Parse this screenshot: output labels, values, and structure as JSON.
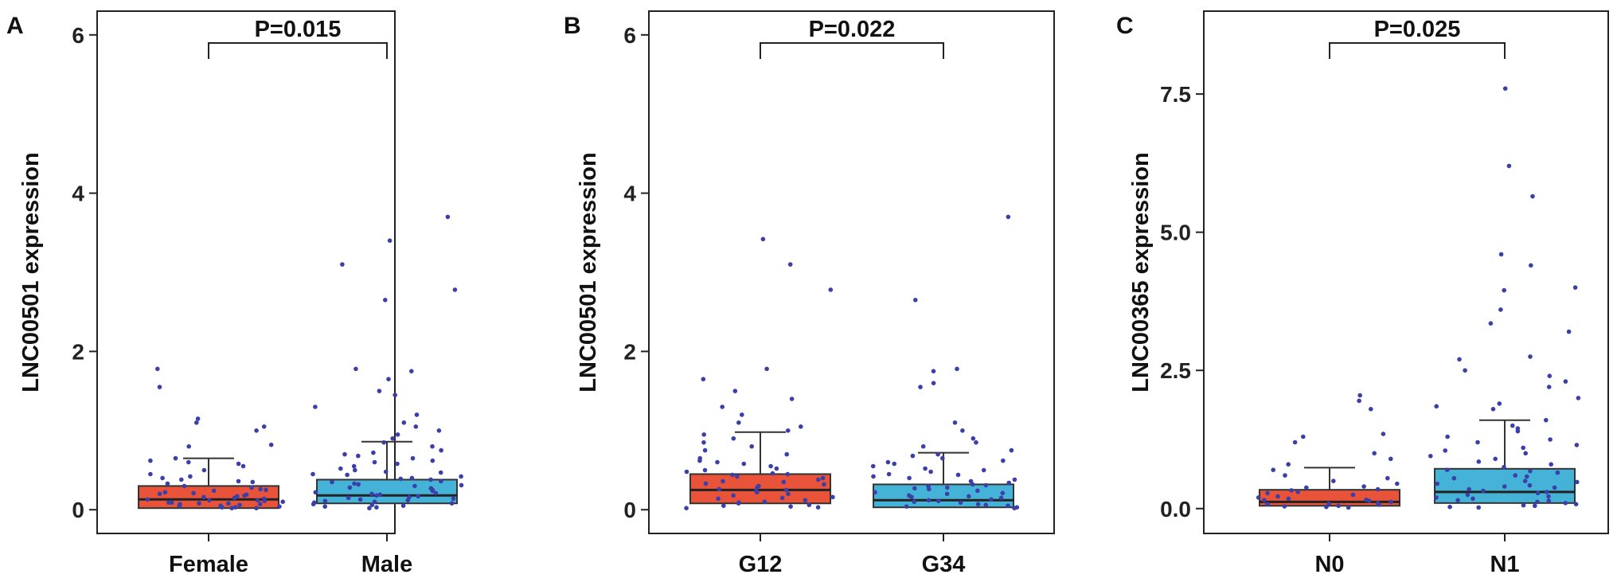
{
  "chart_data": [
    {
      "panel_label": "A",
      "type": "box",
      "ylabel": "LNC00501 expression",
      "ylim": [
        -0.3,
        6.3
      ],
      "yticks": [
        0,
        2,
        4,
        6
      ],
      "ytick_labels": [
        "0",
        "2",
        "4",
        "6"
      ],
      "categories": [
        "Female",
        "Male"
      ],
      "p_value": "P=0.015",
      "box_colors": [
        "#e8533a",
        "#45b3d8"
      ],
      "point_color": "#3b3fa8",
      "boxes": [
        {
          "name": "Female",
          "q1": 0.02,
          "median": 0.13,
          "q3": 0.3,
          "whisker_low": 0.0,
          "whisker_high": 0.65,
          "points": [
            0.02,
            0.05,
            0.08,
            0.1,
            0.03,
            0.15,
            0.2,
            0.25,
            0.06,
            0.12,
            0.18,
            0.3,
            0.35,
            0.4,
            0.05,
            0.09,
            0.22,
            0.28,
            0.14,
            0.07,
            0.45,
            0.5,
            0.55,
            0.6,
            0.65,
            0.8,
            0.82,
            1.05,
            1.1,
            1.15,
            1.0,
            1.55,
            1.78,
            0.38,
            0.42,
            0.12,
            0.04,
            0.16,
            0.19,
            0.33,
            0.08,
            0.11,
            0.02,
            0.07,
            0.24,
            0.26,
            0.58,
            0.62,
            0.03,
            0.13,
            0.17,
            0.21,
            0.36,
            0.09
          ]
        },
        {
          "name": "Male",
          "q1": 0.08,
          "median": 0.18,
          "q3": 0.38,
          "whisker_low": 0.0,
          "whisker_high": 0.86,
          "points": [
            0.02,
            0.06,
            0.1,
            0.14,
            0.18,
            0.22,
            0.28,
            0.35,
            0.4,
            0.45,
            0.5,
            0.55,
            0.6,
            0.7,
            0.8,
            0.85,
            0.9,
            1.0,
            1.1,
            1.2,
            1.3,
            1.45,
            1.5,
            1.65,
            1.75,
            1.78,
            2.65,
            2.78,
            3.1,
            3.4,
            3.7,
            0.05,
            0.09,
            0.12,
            0.16,
            0.2,
            0.25,
            0.3,
            0.33,
            0.38,
            0.42,
            0.48,
            0.52,
            0.58,
            0.65,
            0.75,
            0.95,
            1.05,
            0.04,
            0.08,
            0.11,
            0.15,
            0.19,
            0.24,
            0.32,
            0.36,
            0.44,
            0.62,
            0.72,
            0.03,
            0.07,
            0.13,
            0.17,
            0.21,
            0.27,
            0.31,
            0.39,
            0.47,
            0.68
          ]
        }
      ]
    },
    {
      "panel_label": "B",
      "type": "box",
      "ylabel": "LNC00501 expression",
      "ylim": [
        -0.3,
        6.3
      ],
      "yticks": [
        0,
        2,
        4,
        6
      ],
      "ytick_labels": [
        "0",
        "2",
        "4",
        "6"
      ],
      "categories": [
        "G12",
        "G34"
      ],
      "p_value": "P=0.022",
      "box_colors": [
        "#e8533a",
        "#45b3d8"
      ],
      "point_color": "#3b3fa8",
      "boxes": [
        {
          "name": "G12",
          "q1": 0.08,
          "median": 0.25,
          "q3": 0.45,
          "whisker_low": 0.0,
          "whisker_high": 0.98,
          "points": [
            0.02,
            0.05,
            0.1,
            0.15,
            0.2,
            0.25,
            0.3,
            0.35,
            0.4,
            0.45,
            0.5,
            0.55,
            0.6,
            0.7,
            0.8,
            0.9,
            1.0,
            1.1,
            1.2,
            1.3,
            1.5,
            1.65,
            1.78,
            2.78,
            3.1,
            3.42,
            0.06,
            0.12,
            0.18,
            0.22,
            0.28,
            0.33,
            0.38,
            0.42,
            0.48,
            0.52,
            0.58,
            0.65,
            0.75,
            0.85,
            0.95,
            1.05,
            1.4,
            0.04,
            0.08,
            0.14,
            0.24,
            0.32,
            0.44,
            0.62,
            0.03,
            0.09,
            0.16,
            0.26,
            0.36,
            0.46
          ]
        },
        {
          "name": "G34",
          "q1": 0.03,
          "median": 0.12,
          "q3": 0.32,
          "whisker_low": 0.0,
          "whisker_high": 0.72,
          "points": [
            0.02,
            0.04,
            0.07,
            0.1,
            0.13,
            0.16,
            0.2,
            0.24,
            0.28,
            0.32,
            0.36,
            0.4,
            0.45,
            0.5,
            0.55,
            0.6,
            0.65,
            0.7,
            0.8,
            0.9,
            1.0,
            1.1,
            1.55,
            1.6,
            1.75,
            1.78,
            2.65,
            3.7,
            0.05,
            0.09,
            0.12,
            0.15,
            0.18,
            0.22,
            0.26,
            0.3,
            0.34,
            0.38,
            0.42,
            0.48,
            0.52,
            0.58,
            0.62,
            0.68,
            0.75,
            0.85,
            0.03,
            0.06,
            0.11,
            0.17,
            0.21,
            0.27,
            0.31,
            0.44
          ]
        }
      ]
    },
    {
      "panel_label": "C",
      "type": "box",
      "ylabel": "LNC00365 expression",
      "ylim": [
        -0.45,
        9.0
      ],
      "yticks": [
        0.0,
        2.5,
        5.0,
        7.5
      ],
      "ytick_labels": [
        "0.0",
        "2.5",
        "5.0",
        "7.5"
      ],
      "categories": [
        "N0",
        "N1"
      ],
      "p_value": "P=0.025",
      "box_colors": [
        "#e8533a",
        "#45b3d8"
      ],
      "point_color": "#3b3fa8",
      "boxes": [
        {
          "name": "N0",
          "q1": 0.05,
          "median": 0.12,
          "q3": 0.34,
          "whisker_low": 0.0,
          "whisker_high": 0.74,
          "points": [
            0.02,
            0.05,
            0.08,
            0.12,
            0.16,
            0.2,
            0.25,
            0.3,
            0.35,
            0.4,
            0.45,
            0.5,
            0.55,
            0.6,
            0.7,
            0.8,
            0.9,
            1.0,
            1.2,
            1.3,
            1.35,
            1.8,
            1.95,
            2.05,
            0.04,
            0.07,
            0.1,
            0.14,
            0.18,
            0.22,
            0.28,
            0.33,
            0.38,
            0.03,
            0.09,
            0.15
          ]
        },
        {
          "name": "N1",
          "q1": 0.1,
          "median": 0.3,
          "q3": 0.72,
          "whisker_low": 0.0,
          "whisker_high": 1.6,
          "points": [
            0.02,
            0.06,
            0.1,
            0.15,
            0.2,
            0.25,
            0.3,
            0.4,
            0.5,
            0.6,
            0.7,
            0.8,
            0.9,
            1.0,
            1.1,
            1.2,
            1.3,
            1.4,
            1.5,
            1.6,
            1.8,
            1.85,
            2.0,
            2.2,
            2.4,
            2.5,
            2.7,
            2.75,
            3.2,
            3.35,
            3.6,
            4.0,
            4.4,
            4.6,
            5.65,
            6.2,
            7.6,
            0.05,
            0.12,
            0.18,
            0.35,
            0.45,
            0.55,
            0.65,
            0.75,
            0.85,
            0.95,
            1.05,
            1.15,
            1.25,
            1.45,
            0.08,
            0.22,
            0.28,
            0.38,
            0.48,
            0.58,
            0.68,
            0.03,
            0.14,
            0.32,
            0.42,
            3.95,
            2.3,
            1.9
          ]
        }
      ]
    }
  ]
}
